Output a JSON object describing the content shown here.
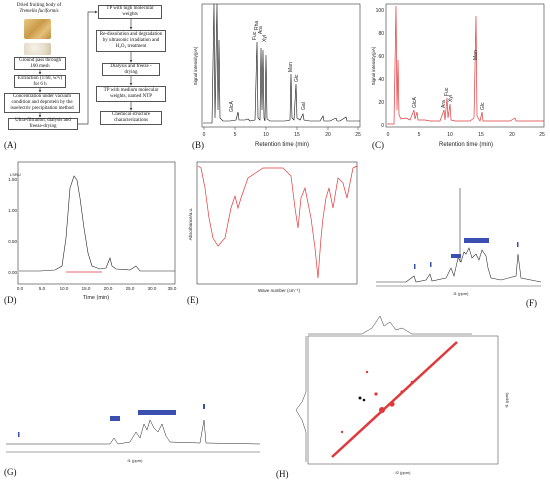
{
  "panel_labels": {
    "a": "(A)",
    "b": "(B)",
    "c": "(C)",
    "d": "(D)",
    "e": "(E)",
    "f": "(F)",
    "g": "(G)",
    "h": "(H)"
  },
  "flow": {
    "b1_line1": "Dried fruiting body of",
    "b1_line2": "Tremella fuciformis",
    "b2": "Ground pass through 100 mesh",
    "b3": "Extraction (1:60, w/v) for 6 h",
    "b4": "Concentration under vacuum condition and deprotein by the isoelectric precipitation method",
    "b5": "Ultra-filtration, dialysis and freeze-drying",
    "b6": "TP with high molecular weights",
    "b7": "Re-dissolution and degradation by ultrasonic irradiation and H₂O₂ treatment",
    "b8": "Dialysis and freeze - drying",
    "b9": "TP with medium molecular weights, named NTP",
    "b10": "Chemical structure characterizations"
  },
  "hplc_b": {
    "ylabel": "Signal intensity(pA)",
    "xlabel": "Retention time (min)",
    "xticks": [
      "0",
      "5",
      "10",
      "15",
      "20",
      "25"
    ],
    "peak_labels": [
      "GlcA",
      "Fuc",
      "Rha",
      "Ara",
      "Xyl",
      "Man",
      "Glc",
      "Gal"
    ]
  },
  "hplc_c": {
    "ylabel": "Signal intensity(pA)",
    "xlabel": "Retention time (min)",
    "xticks": [
      "0",
      "5",
      "10",
      "15",
      "20",
      "25"
    ],
    "yticks": [
      "0",
      "20",
      "40",
      "60",
      "80",
      "100"
    ],
    "peak_labels": [
      "GlcA",
      "Ara",
      "Fuc",
      "Xyl",
      "Man",
      "Glc"
    ]
  },
  "gpc_d": {
    "ylabel": "LSRU",
    "xlabel": "Time (min)",
    "xticks": [
      "0.0",
      "5.0",
      "10.0",
      "15.0",
      "20.0",
      "25.0",
      "30.0",
      "35.0"
    ],
    "yticks": [
      "0.00",
      "0.50",
      "1.00",
      "1.50"
    ]
  },
  "ftir_e": {
    "ylabel": "Absorbance/a.u.",
    "xlabel": "Wave number (cm⁻¹)"
  },
  "nmr_f": {
    "xlabel": "f1 (ppm)"
  },
  "nmr_g": {
    "xlabel": "f1 (ppm)"
  },
  "nmr_h": {
    "xlabel": "f2 (ppm)",
    "ylabel": "f1 (ppm)"
  },
  "colors": {
    "red": "#e0393b",
    "black": "#222222",
    "blue": "#3b4fb0"
  }
}
